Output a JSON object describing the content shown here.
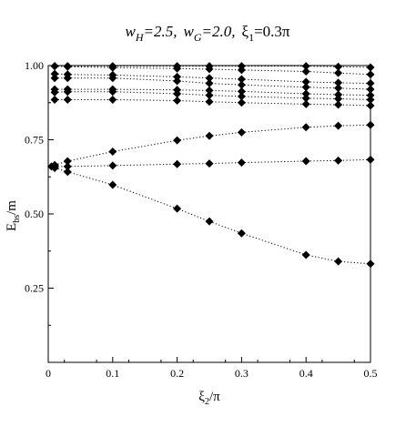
{
  "chart_data": {
    "type": "scatter",
    "title_parts": {
      "w": "w",
      "H": "H",
      "eq1": "=2.5,",
      "G": "G",
      "eq2": "=2.0,",
      "xi": "ξ",
      "one": "1",
      "eq3": "=0.3π"
    },
    "xlabel": {
      "base": "ξ",
      "sub": "2",
      "rest": "/π"
    },
    "ylabel": {
      "base": "E",
      "sub": "bs",
      "rest": "/m"
    },
    "xlim": [
      0,
      0.5
    ],
    "ylim": [
      0,
      1.0
    ],
    "xticks": [
      {
        "value": 0,
        "label": "0"
      },
      {
        "value": 0.1,
        "label": "0.1"
      },
      {
        "value": 0.2,
        "label": "0.2"
      },
      {
        "value": 0.3,
        "label": "0.3"
      },
      {
        "value": 0.4,
        "label": "0.4"
      },
      {
        "value": 0.5,
        "label": "0.5"
      }
    ],
    "yticks": [
      {
        "value": 0.25,
        "label": "0.25"
      },
      {
        "value": 0.5,
        "label": "0.50"
      },
      {
        "value": 0.75,
        "label": "0.75"
      },
      {
        "value": 1.0,
        "label": "1.00"
      }
    ],
    "marker": "diamond",
    "line_style": "dotted",
    "series": [
      {
        "x": [
          0.01,
          0.03,
          0.1,
          0.2,
          0.25,
          0.3,
          0.4,
          0.45,
          0.5
        ],
        "y": [
          0.655,
          0.642,
          0.598,
          0.518,
          0.475,
          0.435,
          0.362,
          0.34,
          0.332
        ]
      },
      {
        "x": [
          0.005,
          0.01,
          0.03,
          0.1,
          0.2,
          0.25,
          0.3,
          0.4,
          0.45,
          0.5
        ],
        "y": [
          0.66,
          0.66,
          0.66,
          0.663,
          0.668,
          0.67,
          0.673,
          0.678,
          0.68,
          0.683
        ]
      },
      {
        "x": [
          0.01,
          0.03,
          0.1,
          0.2,
          0.25,
          0.3,
          0.4,
          0.45,
          0.5
        ],
        "y": [
          0.665,
          0.678,
          0.71,
          0.748,
          0.763,
          0.775,
          0.792,
          0.797,
          0.8
        ]
      },
      {
        "x": [
          0.01,
          0.03,
          0.1,
          0.2,
          0.25,
          0.3,
          0.4,
          0.45,
          0.5
        ],
        "y": [
          0.885,
          0.885,
          0.885,
          0.882,
          0.878,
          0.875,
          0.87,
          0.868,
          0.865
        ]
      },
      {
        "x": [
          0.01,
          0.03,
          0.1,
          0.2,
          0.25,
          0.3,
          0.4,
          0.45,
          0.5
        ],
        "y": [
          0.91,
          0.912,
          0.912,
          0.905,
          0.9,
          0.896,
          0.89,
          0.888,
          0.885
        ]
      },
      {
        "x": [
          0.01,
          0.03,
          0.1,
          0.2,
          0.25,
          0.3,
          0.4,
          0.45,
          0.5
        ],
        "y": [
          0.92,
          0.92,
          0.92,
          0.918,
          0.916,
          0.913,
          0.905,
          0.902,
          0.9
        ]
      },
      {
        "x": [
          0.01,
          0.03,
          0.1,
          0.2,
          0.25,
          0.3,
          0.4,
          0.45,
          0.5
        ],
        "y": [
          0.958,
          0.958,
          0.958,
          0.948,
          0.94,
          0.935,
          0.927,
          0.924,
          0.92
        ]
      },
      {
        "x": [
          0.01,
          0.03,
          0.1,
          0.2,
          0.25,
          0.3,
          0.4,
          0.45,
          0.5
        ],
        "y": [
          0.972,
          0.97,
          0.968,
          0.962,
          0.958,
          0.954,
          0.945,
          0.942,
          0.94
        ]
      },
      {
        "x": [
          0.01,
          0.03,
          0.1,
          0.2,
          0.25,
          0.3,
          0.4,
          0.45,
          0.5
        ],
        "y": [
          0.998,
          0.996,
          0.993,
          0.99,
          0.988,
          0.985,
          0.98,
          0.975,
          0.97
        ]
      },
      {
        "x": [
          0.01,
          0.03,
          0.1,
          0.2,
          0.25,
          0.3,
          0.4,
          0.45,
          0.5
        ],
        "y": [
          0.998,
          0.998,
          0.998,
          0.998,
          0.998,
          0.998,
          0.998,
          0.996,
          0.994
        ]
      }
    ]
  }
}
